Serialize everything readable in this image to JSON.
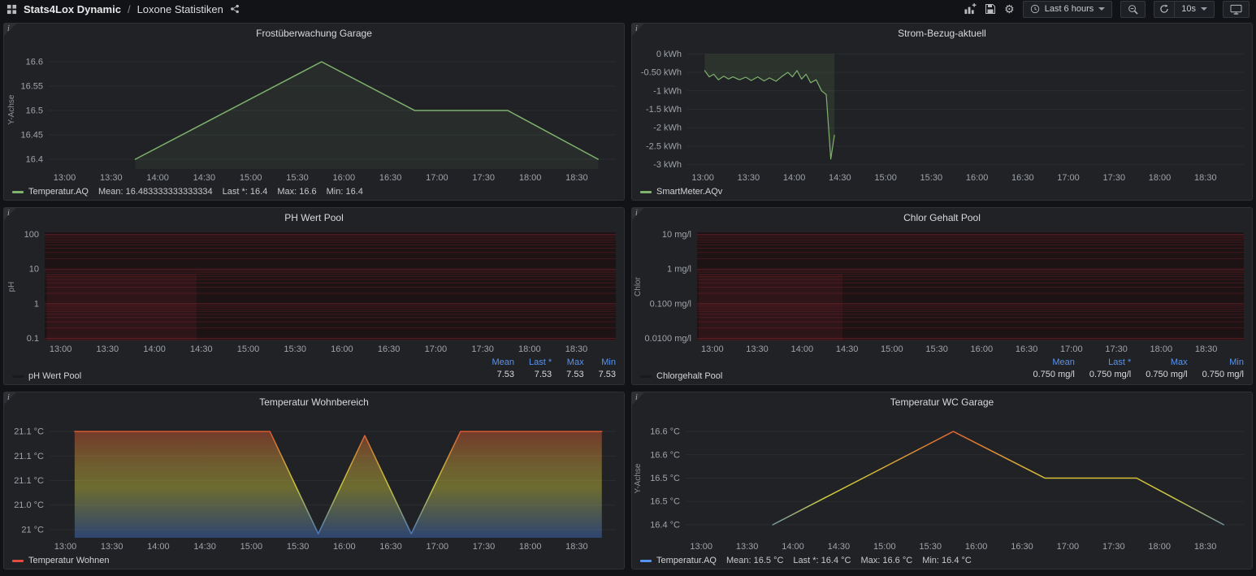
{
  "navbar": {
    "dashboard": "Stats4Lox Dynamic",
    "separator": "/",
    "page": "Loxone Statistiken",
    "time_range": "Last 6 hours",
    "refresh_interval": "10s",
    "icons": [
      "apps-grid",
      "share",
      "add-panel",
      "save",
      "settings-gear",
      "clock",
      "zoom-out",
      "refresh",
      "cycle-display"
    ]
  },
  "panels": [
    {
      "title": "Frostüberwachung Garage",
      "legend": {
        "type": "inline",
        "swatch": "#7eb26d",
        "label": "Temperatur.AQ",
        "stats": [
          "Mean: 16.483333333333334",
          "Last *: 16.4",
          "Max: 16.6",
          "Min: 16.4"
        ]
      }
    },
    {
      "title": "Strom-Bezug-aktuell",
      "legend": {
        "type": "inline",
        "swatch": "#7eb26d",
        "label": "SmartMeter.AQv",
        "stats": []
      }
    },
    {
      "title": "PH Wert Pool",
      "legend": {
        "type": "table",
        "swatch": "#1a1a1e",
        "label": "pH Wert Pool",
        "columns": [
          "Mean",
          "Last *",
          "Max",
          "Min"
        ],
        "values": [
          "7.53",
          "7.53",
          "7.53",
          "7.53"
        ]
      }
    },
    {
      "title": "Chlor Gehalt Pool",
      "legend": {
        "type": "table",
        "swatch": "#1a1a1e",
        "label": "Chlorgehalt Pool",
        "columns": [
          "Mean",
          "Last *",
          "Max",
          "Min"
        ],
        "values": [
          "0.750 mg/l",
          "0.750 mg/l",
          "0.750 mg/l",
          "0.750 mg/l"
        ]
      }
    },
    {
      "title": "Temperatur Wohnbereich",
      "legend": {
        "type": "inline",
        "swatch": "#e24d42",
        "label": "Temperatur Wohnen",
        "stats": []
      }
    },
    {
      "title": "Temperatur WC Garage",
      "legend": {
        "type": "inline",
        "swatch": "#5794f2",
        "label": "Temperatur.AQ",
        "stats": [
          "Mean: 16.5 °C",
          "Last *: 16.4 °C",
          "Max: 16.6 °C",
          "Min: 16.4 °C"
        ]
      }
    }
  ],
  "chart_data": [
    {
      "type": "line",
      "title": "Frostüberwachung Garage",
      "ylabel": "Y-Achse",
      "x_ticks": [
        "13:00",
        "13:30",
        "14:00",
        "14:30",
        "15:00",
        "15:30",
        "16:00",
        "16:30",
        "17:00",
        "17:30",
        "18:00",
        "18:30"
      ],
      "x_tick_start": 13,
      "x_tick_step": 0.5,
      "x_range": [
        12.83,
        18.92
      ],
      "y_ticks": [
        {
          "label": "16.6",
          "v": 16.6
        },
        {
          "label": "16.55",
          "v": 16.55
        },
        {
          "label": "16.5",
          "v": 16.5
        },
        {
          "label": "16.45",
          "v": 16.45
        },
        {
          "label": "16.4",
          "v": 16.4
        }
      ],
      "y_range": [
        16.625,
        16.38
      ],
      "series": [
        {
          "name": "Temperatur.AQ",
          "color": "#7eb26d",
          "width": 1.5,
          "fill_opacity": 0.08,
          "points": [
            [
              13.76,
              16.4
            ],
            [
              15.76,
              16.6
            ],
            [
              16.76,
              16.5
            ],
            [
              17.76,
              16.5
            ],
            [
              18.73,
              16.4
            ]
          ]
        }
      ]
    },
    {
      "type": "line",
      "title": "Strom-Bezug-aktuell",
      "ylabel": "",
      "x_ticks": [
        "13:00",
        "13:30",
        "14:00",
        "14:30",
        "15:00",
        "15:30",
        "16:00",
        "16:30",
        "17:00",
        "17:30",
        "18:00",
        "18:30"
      ],
      "x_tick_start": 13,
      "x_tick_step": 0.5,
      "x_range": [
        12.83,
        18.92
      ],
      "y_ticks": [
        {
          "label": "0 kWh",
          "v": 0
        },
        {
          "label": "-0.50 kWh",
          "v": -0.5
        },
        {
          "label": "-1 kWh",
          "v": -1
        },
        {
          "label": "-1.5 kWh",
          "v": -1.5
        },
        {
          "label": "-2 kWh",
          "v": -2
        },
        {
          "label": "-2.5 kWh",
          "v": -2.5
        },
        {
          "label": "-3 kWh",
          "v": -3
        }
      ],
      "y_range": [
        0.12,
        -3.12
      ],
      "series": [
        {
          "name": "SmartMeter.AQv",
          "color": "#7eb26d",
          "width": 1.2,
          "fill_opacity": 0.12,
          "fill_to": 0,
          "points": [
            [
              13.02,
              -0.45
            ],
            [
              13.07,
              -0.62
            ],
            [
              13.12,
              -0.55
            ],
            [
              13.17,
              -0.7
            ],
            [
              13.23,
              -0.6
            ],
            [
              13.28,
              -0.68
            ],
            [
              13.33,
              -0.62
            ],
            [
              13.4,
              -0.7
            ],
            [
              13.47,
              -0.63
            ],
            [
              13.53,
              -0.72
            ],
            [
              13.6,
              -0.62
            ],
            [
              13.67,
              -0.73
            ],
            [
              13.73,
              -0.65
            ],
            [
              13.8,
              -0.74
            ],
            [
              13.87,
              -0.6
            ],
            [
              13.93,
              -0.5
            ],
            [
              13.98,
              -0.62
            ],
            [
              14.03,
              -0.45
            ],
            [
              14.08,
              -0.68
            ],
            [
              14.13,
              -0.55
            ],
            [
              14.18,
              -0.78
            ],
            [
              14.24,
              -0.7
            ],
            [
              14.3,
              -1.0
            ],
            [
              14.35,
              -1.1
            ],
            [
              14.4,
              -2.85
            ],
            [
              14.44,
              -2.2
            ]
          ]
        }
      ]
    },
    {
      "type": "line",
      "title": "PH Wert Pool",
      "ylabel": "pH",
      "y_scale": "log10",
      "x_ticks": [
        "13:00",
        "13:30",
        "14:00",
        "14:30",
        "15:00",
        "15:30",
        "16:00",
        "16:30",
        "17:00",
        "17:30",
        "18:00",
        "18:30"
      ],
      "x_tick_start": 13,
      "x_tick_step": 0.5,
      "x_range": [
        12.83,
        18.92
      ],
      "y_ticks": [
        {
          "label": "100",
          "v": 2
        },
        {
          "label": "10",
          "v": 1
        },
        {
          "label": "1",
          "v": 0
        },
        {
          "label": "0.1",
          "v": -1
        }
      ],
      "y_range": [
        2.06,
        -1.06
      ],
      "plot_bg": "#1d1214",
      "grid_minor": "#41181c",
      "grid_major": "#571f24",
      "series": [
        {
          "name": "pH Wert Pool",
          "color": "#141417",
          "width": 1,
          "fill_opacity": 0.14,
          "fill_color": "#9e2b33",
          "points": [
            [
              12.85,
              7.53
            ],
            [
              14.45,
              7.53
            ]
          ]
        }
      ]
    },
    {
      "type": "line",
      "title": "Chlor Gehalt Pool",
      "ylabel": "Chlor",
      "y_scale": "log10",
      "x_ticks": [
        "13:00",
        "13:30",
        "14:00",
        "14:30",
        "15:00",
        "15:30",
        "16:00",
        "16:30",
        "17:00",
        "17:30",
        "18:00",
        "18:30"
      ],
      "x_tick_start": 13,
      "x_tick_step": 0.5,
      "x_range": [
        12.83,
        18.92
      ],
      "y_ticks": [
        {
          "label": "10 mg/l",
          "v": 1
        },
        {
          "label": "1 mg/l",
          "v": 0
        },
        {
          "label": "0.100 mg/l",
          "v": -1
        },
        {
          "label": "0.0100 mg/l",
          "v": -2
        }
      ],
      "y_range": [
        1.06,
        -2.06
      ],
      "plot_bg": "#1d1214",
      "grid_minor": "#41181c",
      "grid_major": "#571f24",
      "series": [
        {
          "name": "Chlorgehalt Pool",
          "color": "#141417",
          "width": 1,
          "fill_opacity": 0.14,
          "fill_color": "#9e2b33",
          "points": [
            [
              12.85,
              0.75
            ],
            [
              14.45,
              0.75
            ]
          ]
        }
      ]
    },
    {
      "type": "line",
      "title": "Temperatur Wohnbereich",
      "ylabel": "",
      "x_ticks": [
        "13:00",
        "13:30",
        "14:00",
        "14:30",
        "15:00",
        "15:30",
        "16:00",
        "16:30",
        "17:00",
        "17:30",
        "18:00",
        "18:30"
      ],
      "x_tick_start": 13,
      "x_tick_step": 0.5,
      "x_range": [
        12.83,
        18.92
      ],
      "y_ticks": [
        {
          "label": "21.1 °C",
          "v": 21.12
        },
        {
          "label": "21.1 °C",
          "v": 21.09
        },
        {
          "label": "21.1 °C",
          "v": 21.06
        },
        {
          "label": "21.0 °C",
          "v": 21.03
        },
        {
          "label": "21 °C",
          "v": 21.0
        }
      ],
      "y_range": [
        21.136,
        20.99
      ],
      "series": [
        {
          "name": "Temperatur Wohnen",
          "width": 1.5,
          "fill_opacity": 0.45,
          "gradient": [
            [
              "0%",
              "#da3b2f"
            ],
            [
              "40%",
              "#cda83c"
            ],
            [
              "58%",
              "#c8c63e"
            ],
            [
              "100%",
              "#3e6fc9"
            ]
          ],
          "points": [
            [
              13.1,
              21.12
            ],
            [
              15.2,
              21.12
            ],
            [
              15.72,
              20.995
            ],
            [
              16.22,
              21.115
            ],
            [
              16.72,
              20.995
            ],
            [
              17.25,
              21.12
            ],
            [
              18.77,
              21.12
            ]
          ]
        }
      ]
    },
    {
      "type": "line",
      "title": "Temperatur WC Garage",
      "ylabel": "Y-Achse",
      "x_ticks": [
        "13:00",
        "13:30",
        "14:00",
        "14:30",
        "15:00",
        "15:30",
        "16:00",
        "16:30",
        "17:00",
        "17:30",
        "18:00",
        "18:30"
      ],
      "x_tick_start": 13,
      "x_tick_step": 0.5,
      "x_range": [
        12.83,
        18.92
      ],
      "y_ticks": [
        {
          "label": "16.6 °C",
          "v": 16.6
        },
        {
          "label": "16.6 °C",
          "v": 16.55
        },
        {
          "label": "16.5 °C",
          "v": 16.5
        },
        {
          "label": "16.5 °C",
          "v": 16.45
        },
        {
          "label": "16.4 °C",
          "v": 16.4
        }
      ],
      "y_range": [
        16.628,
        16.372
      ],
      "series": [
        {
          "name": "Temperatur.AQ",
          "width": 1.5,
          "fill_opacity": 0,
          "gradient": [
            [
              "0%",
              "#e2492e"
            ],
            [
              "45%",
              "#d8b93a"
            ],
            [
              "65%",
              "#d6d23c"
            ],
            [
              "100%",
              "#4277d2"
            ]
          ],
          "points": [
            [
              13.78,
              16.4
            ],
            [
              15.75,
              16.6
            ],
            [
              16.75,
              16.5
            ],
            [
              17.75,
              16.5
            ],
            [
              18.7,
              16.4
            ]
          ]
        }
      ]
    }
  ]
}
